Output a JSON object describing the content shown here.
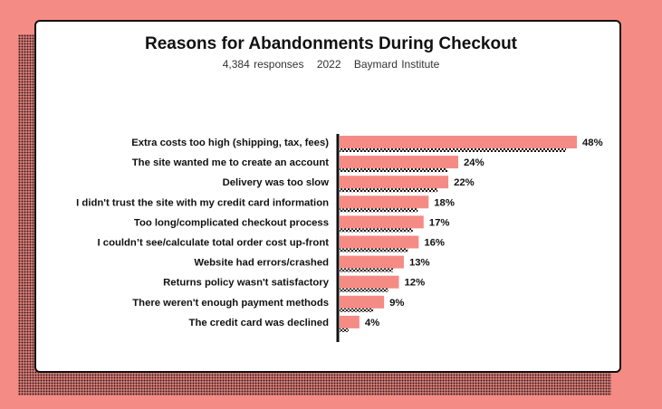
{
  "chart_data": {
    "type": "bar",
    "orientation": "horizontal",
    "title": "Reasons for Abandonments During Checkout",
    "subtitle": {
      "responses": "4,384 responses",
      "year": "2022",
      "source": "Baymard Institute"
    },
    "categories": [
      "Extra costs too high (shipping, tax, fees)",
      "The site wanted me to create an account",
      "Delivery was too slow",
      "I didn't trust the site with my credit card information",
      "Too long/complicated checkout process",
      "I couldn’t see/calculate total order cost up-front",
      "Website had errors/crashed",
      "Returns policy wasn't satisfactory",
      "There weren't enough payment methods",
      "The credit card was declined"
    ],
    "values": [
      48,
      24,
      22,
      18,
      17,
      16,
      13,
      12,
      9,
      4
    ],
    "value_labels": [
      "48%",
      "24%",
      "22%",
      "18%",
      "17%",
      "16%",
      "13%",
      "12%",
      "9%",
      "4%"
    ],
    "xlim": [
      0,
      48
    ],
    "grid": false,
    "colors": {
      "bar": "#f58b85",
      "background": "#f58b85",
      "card": "#ffffff",
      "text": "#111111"
    }
  }
}
